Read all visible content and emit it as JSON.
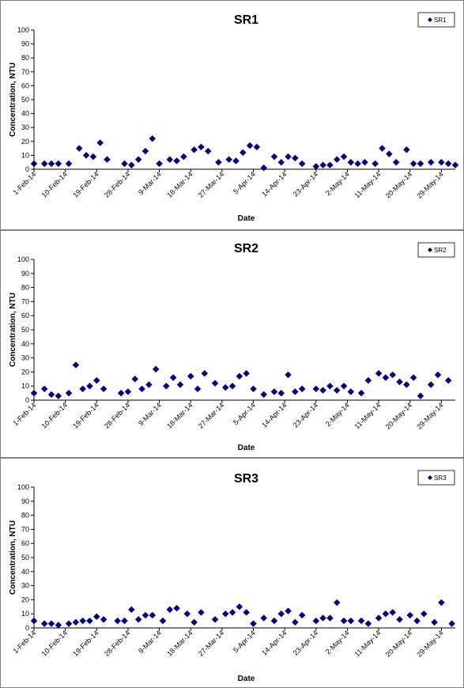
{
  "colors": {
    "marker": "#000080",
    "axis": "#000000",
    "frame": "#808080"
  },
  "chart_data": [
    {
      "type": "scatter",
      "title": "SR1",
      "xlabel": "Date",
      "ylabel": "Concentration, NTU",
      "ylim": [
        0,
        100
      ],
      "yticks": [
        "0",
        "10",
        "20",
        "30",
        "40",
        "50",
        "60",
        "70",
        "80",
        "90",
        "100"
      ],
      "xlim": [
        "2014-02-01",
        "2014-06-02"
      ],
      "xticks": [
        "1-Feb-14",
        "10-Feb-14",
        "19-Feb-14",
        "28-Feb-14",
        "9-Mar-14",
        "18-Mar-14",
        "27-Mar-14",
        "5-Apr-14",
        "14-Apr-14",
        "23-Apr-14",
        "2-May-14",
        "11-May-14",
        "20-May-14",
        "29-May-14"
      ],
      "grid": false,
      "legend": "top-right",
      "series": [
        {
          "name": "SR1",
          "x": [
            "2014-02-01",
            "2014-02-04",
            "2014-02-06",
            "2014-02-08",
            "2014-02-11",
            "2014-02-14",
            "2014-02-16",
            "2014-02-18",
            "2014-02-20",
            "2014-02-22",
            "2014-02-27",
            "2014-03-01",
            "2014-03-03",
            "2014-03-05",
            "2014-03-07",
            "2014-03-09",
            "2014-03-12",
            "2014-03-14",
            "2014-03-16",
            "2014-03-19",
            "2014-03-21",
            "2014-03-23",
            "2014-03-26",
            "2014-03-29",
            "2014-03-31",
            "2014-04-02",
            "2014-04-04",
            "2014-04-06",
            "2014-04-08",
            "2014-04-11",
            "2014-04-13",
            "2014-04-15",
            "2014-04-17",
            "2014-04-19",
            "2014-04-23",
            "2014-04-25",
            "2014-04-27",
            "2014-04-29",
            "2014-05-01",
            "2014-05-03",
            "2014-05-05",
            "2014-05-07",
            "2014-05-10",
            "2014-05-12",
            "2014-05-14",
            "2014-05-16",
            "2014-05-19",
            "2014-05-21",
            "2014-05-23",
            "2014-05-26",
            "2014-05-29",
            "2014-05-31",
            "2014-06-02"
          ],
          "y": [
            4,
            4,
            4,
            4,
            4,
            15,
            10,
            9,
            19,
            7,
            4,
            3,
            7,
            13,
            22,
            4,
            7,
            6,
            9,
            14,
            16,
            13,
            5,
            7,
            6,
            12,
            17,
            16,
            1,
            9,
            5,
            9,
            8,
            4,
            2,
            3,
            3,
            7,
            9,
            5,
            4,
            5,
            4,
            15,
            11,
            5,
            14,
            4,
            4,
            5,
            5,
            4,
            3
          ]
        }
      ]
    },
    {
      "type": "scatter",
      "title": "SR2",
      "xlabel": "Date",
      "ylabel": "Concentration, NTU",
      "ylim": [
        0,
        100
      ],
      "yticks": [
        "0",
        "10",
        "20",
        "30",
        "40",
        "50",
        "60",
        "70",
        "80",
        "90",
        "100"
      ],
      "xlim": [
        "2014-02-01",
        "2014-06-02"
      ],
      "xticks": [
        "1-Feb-14",
        "10-Feb-14",
        "19-Feb-14",
        "28-Feb-14",
        "9-Mar-14",
        "18-Mar-14",
        "27-Mar-14",
        "5-Apr-14",
        "14-Apr-14",
        "23-Apr-14",
        "2-May-14",
        "11-May-14",
        "20-May-14",
        "29-May-14"
      ],
      "grid": false,
      "legend": "top-right",
      "series": [
        {
          "name": "SR2",
          "x": [
            "2014-02-01",
            "2014-02-04",
            "2014-02-06",
            "2014-02-08",
            "2014-02-11",
            "2014-02-13",
            "2014-02-15",
            "2014-02-17",
            "2014-02-19",
            "2014-02-21",
            "2014-02-26",
            "2014-02-28",
            "2014-03-02",
            "2014-03-04",
            "2014-03-06",
            "2014-03-08",
            "2014-03-11",
            "2014-03-13",
            "2014-03-15",
            "2014-03-18",
            "2014-03-20",
            "2014-03-22",
            "2014-03-25",
            "2014-03-28",
            "2014-03-30",
            "2014-04-01",
            "2014-04-03",
            "2014-04-05",
            "2014-04-08",
            "2014-04-11",
            "2014-04-13",
            "2014-04-15",
            "2014-04-17",
            "2014-04-19",
            "2014-04-23",
            "2014-04-25",
            "2014-04-27",
            "2014-04-29",
            "2014-05-01",
            "2014-05-03",
            "2014-05-06",
            "2014-05-08",
            "2014-05-11",
            "2014-05-13",
            "2014-05-15",
            "2014-05-17",
            "2014-05-19",
            "2014-05-21",
            "2014-05-23",
            "2014-05-26",
            "2014-05-28",
            "2014-05-31"
          ],
          "y": [
            5,
            8,
            4,
            3,
            5,
            25,
            8,
            10,
            14,
            8,
            5,
            6,
            15,
            8,
            11,
            22,
            10,
            16,
            11,
            17,
            8,
            19,
            12,
            9,
            10,
            17,
            19,
            8,
            4,
            6,
            5,
            18,
            6,
            8,
            8,
            7,
            10,
            7,
            10,
            6,
            5,
            14,
            19,
            16,
            18,
            13,
            11,
            16,
            3,
            11,
            18,
            14
          ]
        }
      ]
    },
    {
      "type": "scatter",
      "title": "SR3",
      "xlabel": "Date",
      "ylabel": "Concentration, NTU",
      "ylim": [
        0,
        100
      ],
      "yticks": [
        "0",
        "10",
        "20",
        "30",
        "40",
        "50",
        "60",
        "70",
        "80",
        "90",
        "100"
      ],
      "xlim": [
        "2014-02-01",
        "2014-06-02"
      ],
      "xticks": [
        "1-Feb-14",
        "10-Feb-14",
        "19-Feb-14",
        "28-Feb-14",
        "9-Mar-14",
        "18-Mar-14",
        "27-Mar-14",
        "5-Apr-14",
        "14-Apr-14",
        "23-Apr-14",
        "2-May-14",
        "11-May-14",
        "20-May-14",
        "29-May-14"
      ],
      "grid": false,
      "legend": "top-right",
      "series": [
        {
          "name": "SR3",
          "x": [
            "2014-02-01",
            "2014-02-04",
            "2014-02-06",
            "2014-02-08",
            "2014-02-11",
            "2014-02-13",
            "2014-02-15",
            "2014-02-17",
            "2014-02-19",
            "2014-02-21",
            "2014-02-25",
            "2014-02-27",
            "2014-03-01",
            "2014-03-03",
            "2014-03-05",
            "2014-03-07",
            "2014-03-10",
            "2014-03-12",
            "2014-03-14",
            "2014-03-17",
            "2014-03-19",
            "2014-03-21",
            "2014-03-25",
            "2014-03-28",
            "2014-03-30",
            "2014-04-01",
            "2014-04-03",
            "2014-04-05",
            "2014-04-08",
            "2014-04-11",
            "2014-04-13",
            "2014-04-15",
            "2014-04-17",
            "2014-04-19",
            "2014-04-23",
            "2014-04-25",
            "2014-04-27",
            "2014-04-29",
            "2014-05-01",
            "2014-05-03",
            "2014-05-06",
            "2014-05-08",
            "2014-05-11",
            "2014-05-13",
            "2014-05-15",
            "2014-05-17",
            "2014-05-20",
            "2014-05-22",
            "2014-05-24",
            "2014-05-27",
            "2014-05-29",
            "2014-06-01"
          ],
          "y": [
            5,
            3,
            3,
            2,
            3,
            4,
            5,
            5,
            8,
            6,
            5,
            5,
            13,
            6,
            9,
            9,
            5,
            13,
            14,
            10,
            4,
            11,
            6,
            10,
            11,
            15,
            11,
            3,
            7,
            5,
            10,
            12,
            4,
            9,
            5,
            7,
            7,
            18,
            5,
            5,
            5,
            3,
            7,
            10,
            11,
            6,
            9,
            5,
            10,
            4,
            18,
            3
          ]
        }
      ]
    }
  ]
}
